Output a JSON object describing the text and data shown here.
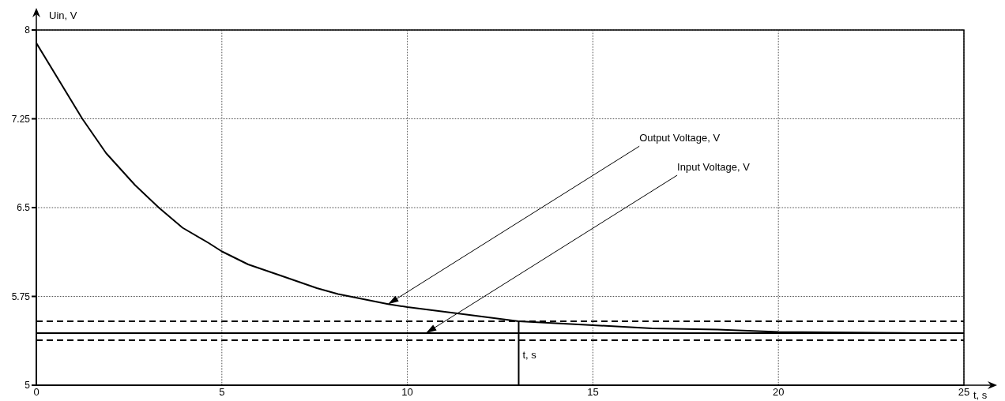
{
  "chart_data": {
    "type": "line",
    "xlabel": "t, s",
    "ylabel": "Uin, V",
    "xlim": [
      0,
      25
    ],
    "ylim": [
      5,
      8
    ],
    "xticks": [
      0,
      5,
      10,
      15,
      20,
      25
    ],
    "yticks": [
      5,
      5.75,
      6.5,
      7.25,
      8
    ],
    "grid": true,
    "marker": "none",
    "line_style": "solid",
    "series": [
      {
        "color": "#000000",
        "x": [
          0,
          1.24,
          1.88,
          2.66,
          3.3,
          3.94,
          4.65,
          5,
          5.71,
          6.64,
          7.56,
          8.13,
          9.48,
          10,
          11.26,
          13,
          14.81,
          16.59,
          18.36,
          20,
          22,
          23.9
        ],
        "values": [
          7.89,
          7.25,
          6.96,
          6.69,
          6.5,
          6.33,
          6.2,
          6.13,
          6.02,
          5.92,
          5.82,
          5.77,
          5.685,
          5.66,
          5.61,
          5.54,
          5.51,
          5.48,
          5.47,
          5.45,
          5.445,
          5.44
        ]
      },
      {
        "color": "#000000",
        "x": [
          0,
          25
        ],
        "values": [
          5.44,
          5.44
        ]
      }
    ],
    "ref_lines": [
      {
        "axis": "y",
        "value": 5.54,
        "line_style": "dashed",
        "color": "#000000"
      },
      {
        "axis": "y",
        "value": 5.38,
        "line_style": "dashed",
        "color": "#000000"
      },
      {
        "axis": "x",
        "value": 13,
        "label": "t, s",
        "color": "#000000"
      }
    ],
    "annotations": [
      {
        "text": "Output Voltage, V",
        "x": 9.48,
        "y": 5.685
      },
      {
        "text": "Input Voltage, V",
        "x": 10.5,
        "y": 5.44
      }
    ]
  }
}
